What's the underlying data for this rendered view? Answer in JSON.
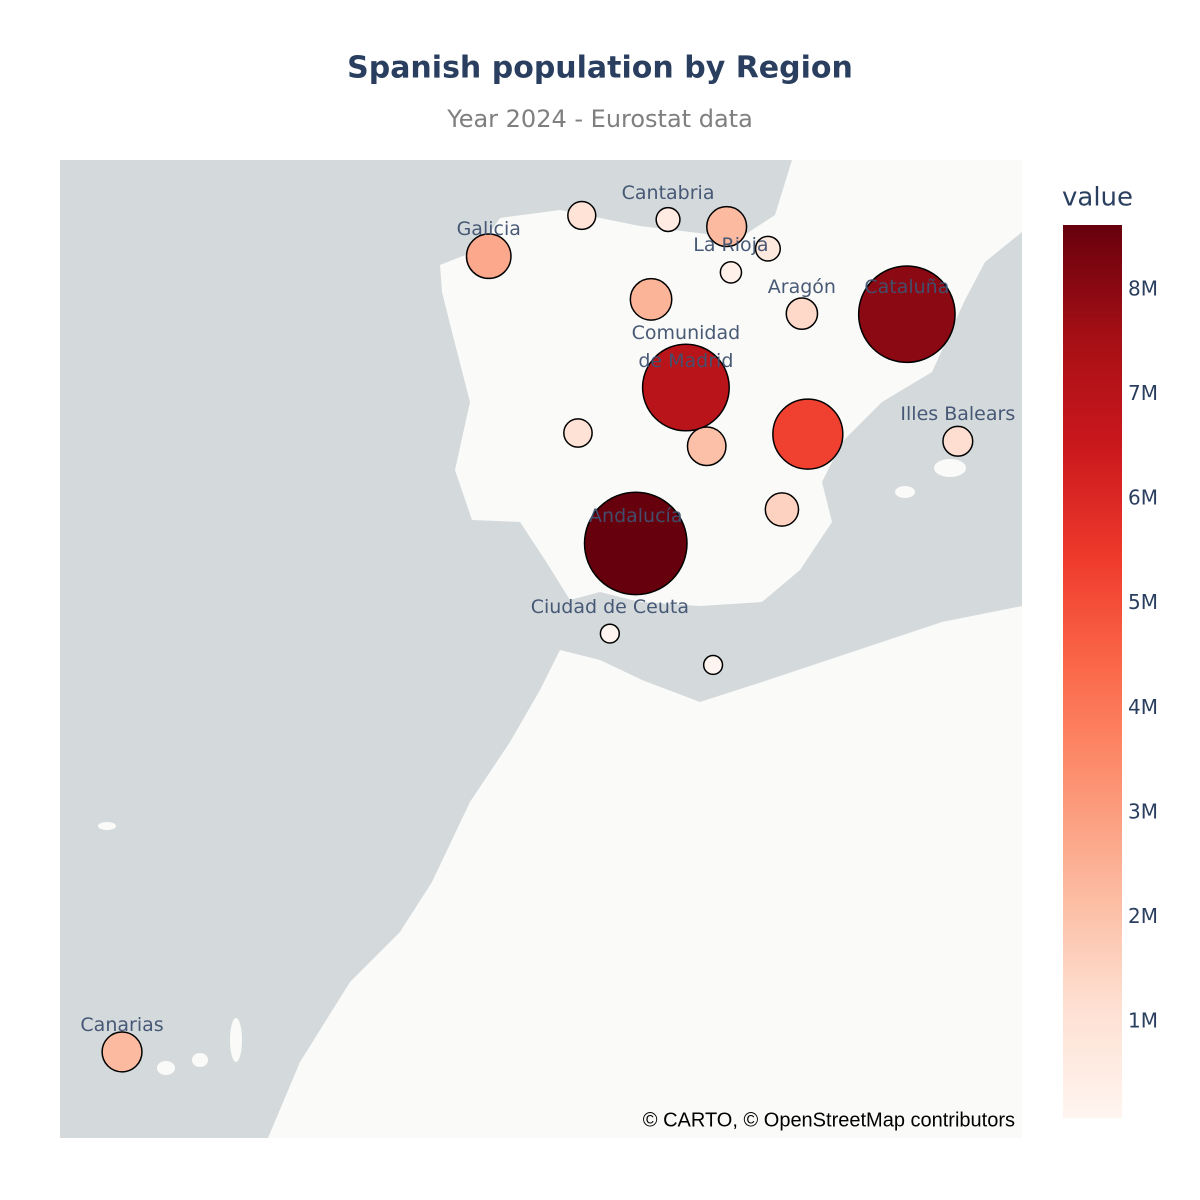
{
  "chart_data": {
    "type": "scatter_map",
    "title": "Spanish population by Region",
    "subtitle": "Year 2024 - Eurostat data",
    "lonlim": [
      -18.43,
      4.21
    ],
    "latlim": [
      25.7,
      44.37
    ],
    "lon": [
      -8.34,
      -6.15,
      -4.12,
      -2.74,
      -1.77,
      -2.64,
      -4.52,
      -0.97,
      1.5,
      -3.7,
      -6.24,
      -3.21,
      -0.83,
      2.7,
      -1.44,
      -4.88,
      -5.49,
      -3.06,
      -16.97
    ],
    "lat": [
      42.73,
      43.43,
      43.36,
      43.24,
      42.86,
      42.45,
      41.98,
      41.73,
      41.72,
      40.42,
      39.6,
      39.36,
      39.58,
      39.45,
      38.2,
      37.57,
      35.87,
      35.27,
      27.51
    ],
    "values": [
      2700000,
      1010000,
      590000,
      2230000,
      680000,
      320000,
      2390000,
      1350000,
      8000000,
      7000000,
      1050000,
      2090000,
      5300000,
      1200000,
      1550000,
      8620000,
      83000,
      85000,
      2230000
    ],
    "labels": [
      "Galicia",
      null,
      "Cantabria",
      null,
      null,
      "La Rioja",
      null,
      "Aragón",
      "Cataluña",
      "Comunidad\nde Madrid",
      null,
      null,
      null,
      "Illes Balears",
      null,
      "Andalucía",
      "Ciudad de Ceuta",
      null,
      "Canarias"
    ],
    "colorscale": [
      "#fff5f0",
      "#fee0d2",
      "#fcbba1",
      "#fc9272",
      "#fb6a4a",
      "#ef3b2c",
      "#cb181d",
      "#a50f15",
      "#67000d"
    ],
    "marker_line_color": "#000000",
    "colorbar": {
      "title": "value",
      "lim": [
        83000,
        8620000
      ],
      "ticks": [
        {
          "value": 1000000,
          "label": "1M"
        },
        {
          "value": 2000000,
          "label": "2M"
        },
        {
          "value": 3000000,
          "label": "3M"
        },
        {
          "value": 4000000,
          "label": "4M"
        },
        {
          "value": 5000000,
          "label": "5M"
        },
        {
          "value": 6000000,
          "label": "6M"
        },
        {
          "value": 7000000,
          "label": "7M"
        },
        {
          "value": 8000000,
          "label": "8M"
        }
      ]
    },
    "attribution": "© CARTO, © OpenStreetMap contributors"
  }
}
